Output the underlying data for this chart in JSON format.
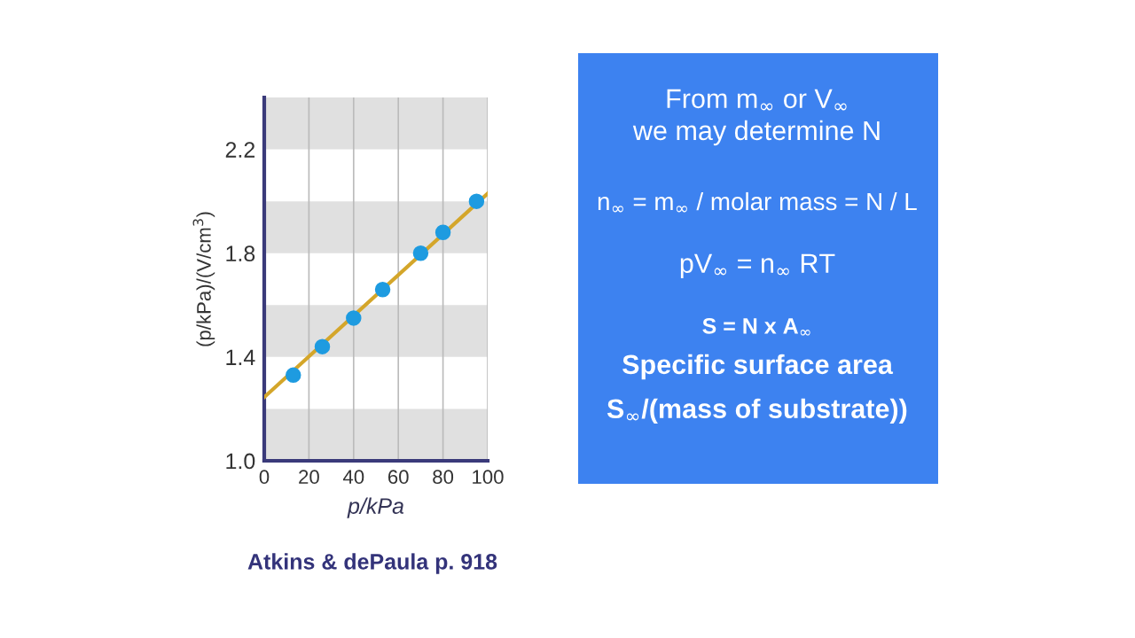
{
  "chart_data": {
    "type": "scatter",
    "xlabel": "p/kPa",
    "ylabel": "(p/kPa)/(V/cm$^{3}$)",
    "xlim": [
      0,
      100
    ],
    "ylim": [
      1.0,
      2.4
    ],
    "xticks": [
      0,
      20,
      40,
      60,
      80,
      100
    ],
    "yticks": [
      {
        "value": 1.0,
        "label": "1.0"
      },
      1.4,
      1.8,
      2.2
    ],
    "grid": "x",
    "series": [
      {
        "type": "line",
        "color": "#d4a62a",
        "x": [
          0,
          100
        ],
        "values": [
          1.245,
          2.03
        ]
      },
      {
        "marker": "circle",
        "color": "#1e9be0",
        "x": [
          13,
          26,
          40,
          53,
          70,
          80,
          95
        ],
        "values": [
          1.33,
          1.44,
          1.55,
          1.66,
          1.8,
          1.88,
          2.0
        ]
      }
    ],
    "bands": [
      {
        "axis": "y",
        "from": 1.0,
        "to": 1.2,
        "color": "#e0e0e0"
      },
      {
        "axis": "y",
        "from": 1.4,
        "to": 1.6,
        "color": "#e0e0e0"
      },
      {
        "axis": "y",
        "from": 1.8,
        "to": 2.0,
        "color": "#e0e0e0"
      },
      {
        "axis": "y",
        "from": 2.2,
        "to": 2.4,
        "color": "#e0e0e0"
      }
    ],
    "annotations": [
      "From m$_{∞}$ or V$_{∞}$",
      "we may determine N",
      "n$_{∞}$ = m$_{∞}$ / molar mass = N / L",
      "pV$_{∞}$ = n$_{∞}$ RT",
      "S = N x A$_{∞}$",
      "Specific surface area",
      "S$_{∞}$/(mass of substrate))",
      "Atkins & dePaula p. 918"
    ]
  }
}
